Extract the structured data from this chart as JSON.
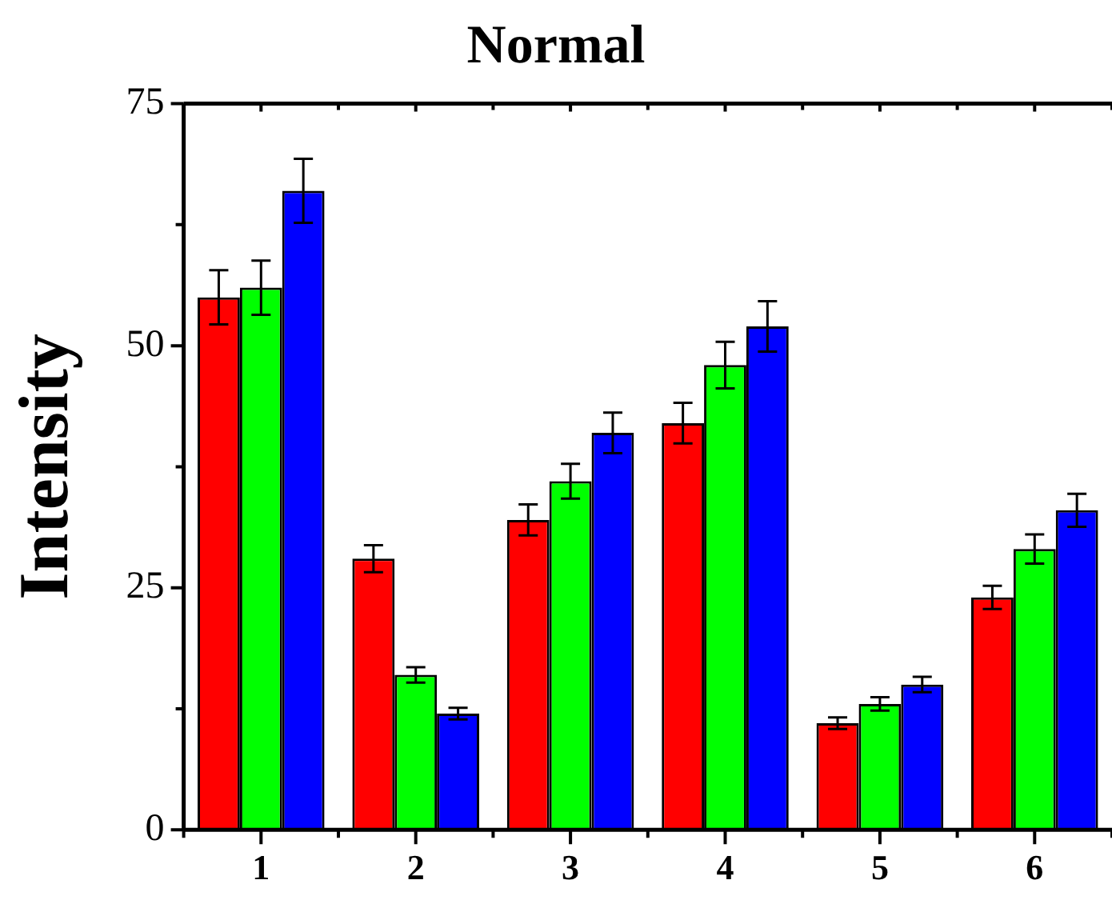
{
  "chart_data": {
    "type": "bar",
    "title": "Normal",
    "ylabel": "Intensity",
    "categories": [
      "1",
      "2",
      "3",
      "4",
      "5",
      "6"
    ],
    "series": [
      {
        "color": "#ff0000",
        "values": [
          55,
          28,
          32,
          42,
          11,
          24
        ],
        "errors": [
          2.8,
          1.4,
          1.6,
          2.1,
          0.6,
          1.2
        ]
      },
      {
        "color": "#00ff00",
        "values": [
          56,
          16,
          36,
          48,
          13,
          29
        ],
        "errors": [
          2.8,
          0.8,
          1.8,
          2.4,
          0.7,
          1.5
        ]
      },
      {
        "color": "#0000ff",
        "values": [
          66,
          12,
          41,
          52,
          15,
          33
        ],
        "errors": [
          3.3,
          0.6,
          2.1,
          2.6,
          0.8,
          1.7
        ]
      }
    ],
    "ylim": [
      0,
      75
    ],
    "yticks": [
      0,
      {
        "value": 12.5,
        "label": null
      },
      25,
      {
        "value": 37.5,
        "label": null
      },
      50,
      {
        "value": 62.5,
        "label": null
      },
      75
    ],
    "grid": false,
    "legend": false
  }
}
